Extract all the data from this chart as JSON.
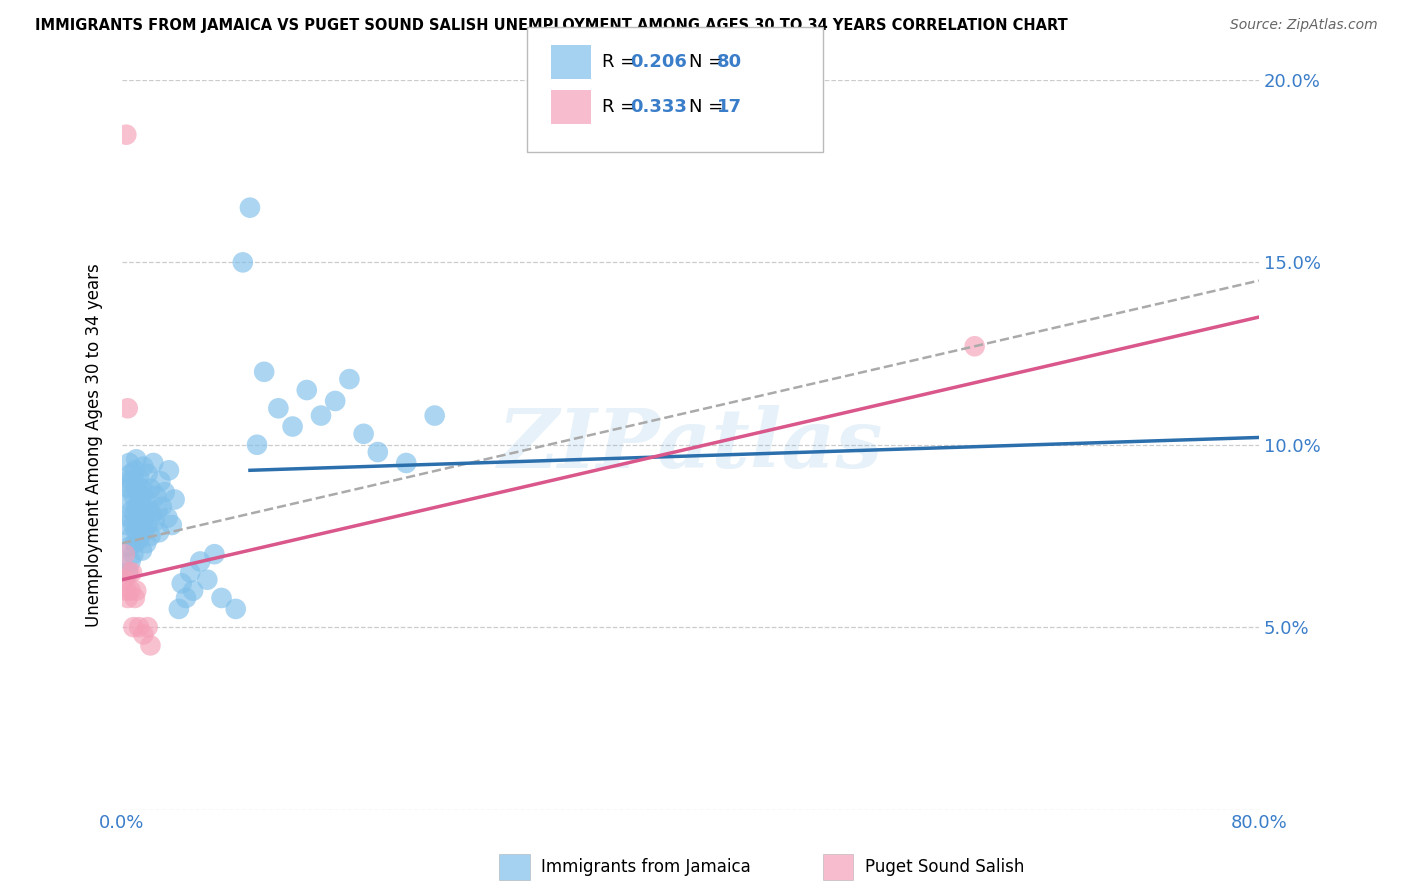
{
  "title": "IMMIGRANTS FROM JAMAICA VS PUGET SOUND SALISH UNEMPLOYMENT AMONG AGES 30 TO 34 YEARS CORRELATION CHART",
  "source": "Source: ZipAtlas.com",
  "ylabel": "Unemployment Among Ages 30 to 34 years",
  "xlim": [
    0,
    0.8
  ],
  "ylim": [
    0,
    0.2
  ],
  "blue_color": "#7fbfea",
  "pink_color": "#f4a0b8",
  "blue_line_color": "#2c6fad",
  "pink_line_color": "#d9578a",
  "gray_line_color": "#aaaaaa",
  "tick_color": "#3a7dc9",
  "watermark": "ZIPatlas",
  "blue_line_x0": 0.09,
  "blue_line_y0": 0.093,
  "blue_line_x1": 0.8,
  "blue_line_y1": 0.102,
  "pink_line_x0": 0.0,
  "pink_line_y0": 0.063,
  "pink_line_x1": 0.8,
  "pink_line_y1": 0.135,
  "gray_line_x0": 0.0,
  "gray_line_y0": 0.073,
  "gray_line_x1": 0.8,
  "gray_line_y1": 0.145,
  "blue_x": [
    0.003,
    0.003,
    0.004,
    0.004,
    0.005,
    0.005,
    0.005,
    0.005,
    0.006,
    0.006,
    0.007,
    0.007,
    0.007,
    0.008,
    0.008,
    0.008,
    0.009,
    0.009,
    0.009,
    0.01,
    0.01,
    0.01,
    0.01,
    0.011,
    0.011,
    0.012,
    0.012,
    0.012,
    0.013,
    0.013,
    0.014,
    0.014,
    0.015,
    0.015,
    0.016,
    0.016,
    0.017,
    0.017,
    0.018,
    0.018,
    0.019,
    0.02,
    0.02,
    0.021,
    0.022,
    0.023,
    0.024,
    0.025,
    0.026,
    0.027,
    0.028,
    0.03,
    0.032,
    0.033,
    0.035,
    0.037,
    0.04,
    0.042,
    0.045,
    0.048,
    0.05,
    0.055,
    0.06,
    0.065,
    0.07,
    0.08,
    0.085,
    0.09,
    0.095,
    0.1,
    0.11,
    0.12,
    0.13,
    0.14,
    0.15,
    0.16,
    0.17,
    0.18,
    0.2,
    0.22
  ],
  "blue_y": [
    0.078,
    0.085,
    0.065,
    0.09,
    0.072,
    0.08,
    0.088,
    0.095,
    0.068,
    0.092,
    0.075,
    0.082,
    0.09,
    0.07,
    0.078,
    0.086,
    0.073,
    0.081,
    0.093,
    0.076,
    0.083,
    0.089,
    0.096,
    0.079,
    0.087,
    0.074,
    0.082,
    0.091,
    0.077,
    0.084,
    0.071,
    0.088,
    0.076,
    0.094,
    0.08,
    0.087,
    0.073,
    0.085,
    0.078,
    0.092,
    0.082,
    0.075,
    0.088,
    0.081,
    0.095,
    0.079,
    0.086,
    0.082,
    0.076,
    0.09,
    0.083,
    0.087,
    0.08,
    0.093,
    0.078,
    0.085,
    0.055,
    0.062,
    0.058,
    0.065,
    0.06,
    0.068,
    0.063,
    0.07,
    0.058,
    0.055,
    0.15,
    0.165,
    0.1,
    0.12,
    0.11,
    0.105,
    0.115,
    0.108,
    0.112,
    0.118,
    0.103,
    0.098,
    0.095,
    0.108
  ],
  "pink_x": [
    0.002,
    0.002,
    0.003,
    0.003,
    0.004,
    0.004,
    0.005,
    0.006,
    0.007,
    0.008,
    0.009,
    0.01,
    0.012,
    0.015,
    0.018,
    0.02,
    0.6
  ],
  "pink_y": [
    0.063,
    0.07,
    0.06,
    0.185,
    0.058,
    0.11,
    0.065,
    0.06,
    0.065,
    0.05,
    0.058,
    0.06,
    0.05,
    0.048,
    0.05,
    0.045,
    0.127
  ]
}
